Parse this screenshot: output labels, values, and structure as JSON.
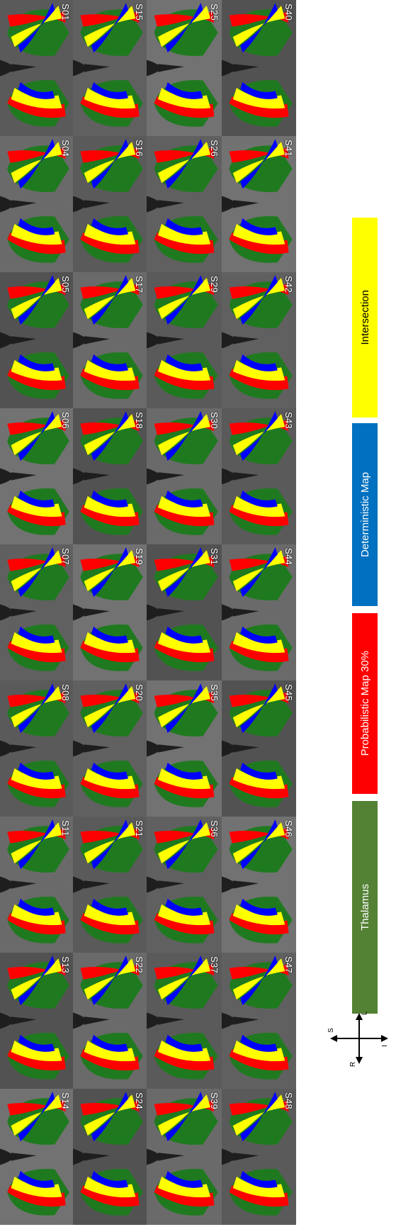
{
  "figure": {
    "rows": [
      [
        "S01",
        "S04",
        "S05",
        "S06",
        "S07",
        "S08",
        "S11",
        "S13",
        "S14"
      ],
      [
        "S15",
        "S16",
        "S17",
        "S18",
        "S19",
        "S20",
        "S21",
        "S22",
        "S24"
      ],
      [
        "S25",
        "S26",
        "S29",
        "S30",
        "S31",
        "S35",
        "S36",
        "S37",
        "S39"
      ],
      [
        "S40",
        "S41",
        "S42",
        "S43",
        "S44",
        "S45",
        "S46",
        "S47",
        "S48"
      ]
    ]
  },
  "legend": {
    "items": [
      {
        "label": "Thalamus",
        "color": "#548235"
      },
      {
        "label": "Probabilistic Map 30%",
        "color": "#ff0000"
      },
      {
        "label": "Deterministic Map",
        "color": "#0070c0"
      },
      {
        "label": "Intersection",
        "color": "#ffff00"
      }
    ]
  },
  "orientation": {
    "S": "S",
    "I": "I",
    "L": "L",
    "R": "R"
  },
  "colors": {
    "thalamus": "#1f7a1f",
    "probabilistic": "#ff0000",
    "deterministic": "#0000ff",
    "intersection": "#ffff00"
  }
}
